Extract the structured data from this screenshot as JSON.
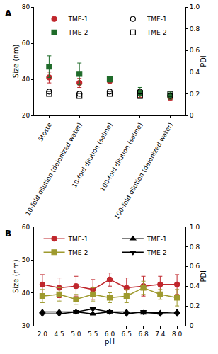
{
  "chart_data": [
    {
      "type": "scatter",
      "label": "A",
      "categories": [
        "Stoste",
        "10-fold dilution (deionized water)",
        "10-fold dilution (saline)",
        "100-fold dilution (saline)",
        "100-fold dilution (deionized water)"
      ],
      "y_label": "Size (nm)",
      "y2_label": "PDI",
      "ylim": [
        20,
        80
      ],
      "yticks": [
        20,
        40,
        60,
        80
      ],
      "y2lim": [
        0,
        1
      ],
      "y2ticks": [
        0,
        0.2,
        0.4,
        0.6,
        0.8,
        {
          "value": 1,
          "label": "1.0"
        }
      ],
      "series": [
        {
          "name": "TME-1",
          "color": "#c0272d",
          "marker": "circle",
          "values": [
            41,
            38,
            39,
            32,
            30
          ],
          "errors": [
            3,
            2.5,
            1.5,
            2,
            1.5
          ]
        },
        {
          "name": "TME-2",
          "color": "#1f6b2a",
          "marker": "square",
          "values": [
            47,
            43,
            40,
            32.5,
            31
          ],
          "errors": [
            6,
            6,
            1.5,
            3,
            2
          ]
        },
        {
          "name": "TME-1",
          "color": "#000000",
          "marker": "circle-open",
          "axis": "y2",
          "values": [
            0.22,
            0.2,
            0.22,
            0.22,
            0.18
          ]
        },
        {
          "name": "TME-2",
          "color": "#000000",
          "marker": "square-open",
          "axis": "y2",
          "values": [
            0.2,
            0.18,
            0.2,
            0.18,
            0.2
          ]
        }
      ]
    },
    {
      "type": "line",
      "label": "B",
      "categories": [
        "2.0",
        "4.5",
        "5.0",
        "5.5",
        "6.0",
        "6.5",
        "6.8",
        "7.4",
        "8.0"
      ],
      "x_label": "pH",
      "y_label": "Size (nm)",
      "y2_label": "PDI",
      "ylim": [
        30,
        60
      ],
      "yticks": [
        30,
        40,
        50,
        60
      ],
      "y2lim": [
        0,
        1
      ],
      "y2ticks": [
        0,
        0.2,
        0.4,
        0.6,
        0.8,
        {
          "value": 1,
          "label": "1.0"
        }
      ],
      "series": [
        {
          "name": "TME-1",
          "color": "#c0272d",
          "marker": "circle",
          "values": [
            42.5,
            41.5,
            42,
            41,
            44,
            41.5,
            42,
            42.5,
            42.5
          ],
          "errors": [
            3,
            3,
            3,
            3,
            2,
            3,
            3,
            2.5,
            3
          ]
        },
        {
          "name": "TME-2",
          "color": "#9e9a2e",
          "marker": "square",
          "values": [
            39,
            39.5,
            38,
            39.5,
            38.5,
            39,
            41.5,
            39.5,
            38.5
          ],
          "errors": [
            2,
            2,
            1.5,
            2,
            1.5,
            2,
            2,
            1.5,
            2.5
          ]
        },
        {
          "name": "TME-1",
          "color": "#000000",
          "marker": "triangle-up",
          "axis": "y2",
          "values": [
            0.14,
            0.14,
            0.14,
            0.12,
            0.14,
            0.14,
            0.13,
            0.13,
            0.14
          ]
        },
        {
          "name": "TME-2",
          "color": "#000000",
          "marker": "triangle-down",
          "axis": "y2",
          "values": [
            0.12,
            0.12,
            0.14,
            0.17,
            0.14,
            0.12,
            0.14,
            0.12,
            0.12
          ]
        }
      ]
    }
  ]
}
